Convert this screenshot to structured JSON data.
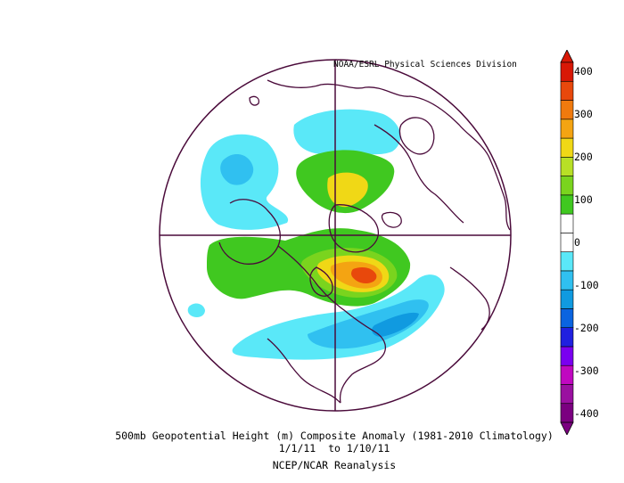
{
  "credit": "NOAA/ESRL Physical Sciences Division",
  "caption": {
    "line1": "500mb Geopotential Height (m) Composite Anomaly (1981-2010 Climatology)",
    "line2": "1/1/11  to 1/10/11",
    "line3": "NCEP/NCAR Reanalysis"
  },
  "colorbar": {
    "ticks": [
      "400",
      "300",
      "200",
      "100",
      "0",
      "-100",
      "-200",
      "-300",
      "-400"
    ],
    "colors": [
      "#7b0080",
      "#9a10a0",
      "#c008c0",
      "#7a00f0",
      "#2020e0",
      "#0a64e0",
      "#109ae0",
      "#30c0f0",
      "#5ae8f8",
      "#ffffff",
      "#ffffff",
      "#40c820",
      "#7ad41e",
      "#b8e026",
      "#f0d816",
      "#f4a412",
      "#f07a0e",
      "#e8480c",
      "#d81806"
    ]
  },
  "map": {
    "projection": "polar-stereographic-north",
    "anomaly_colors": {
      "neg_light": "#5ae8f8",
      "neg_mid": "#30c0f0",
      "neg_dark": "#109ae0",
      "pos_light": "#40c820",
      "pos_mid": "#7ad41e",
      "pos_yellow": "#f0d816",
      "pos_orange": "#f4a412",
      "pos_red": "#e8480c"
    },
    "line_color": "#4a0a3a"
  }
}
